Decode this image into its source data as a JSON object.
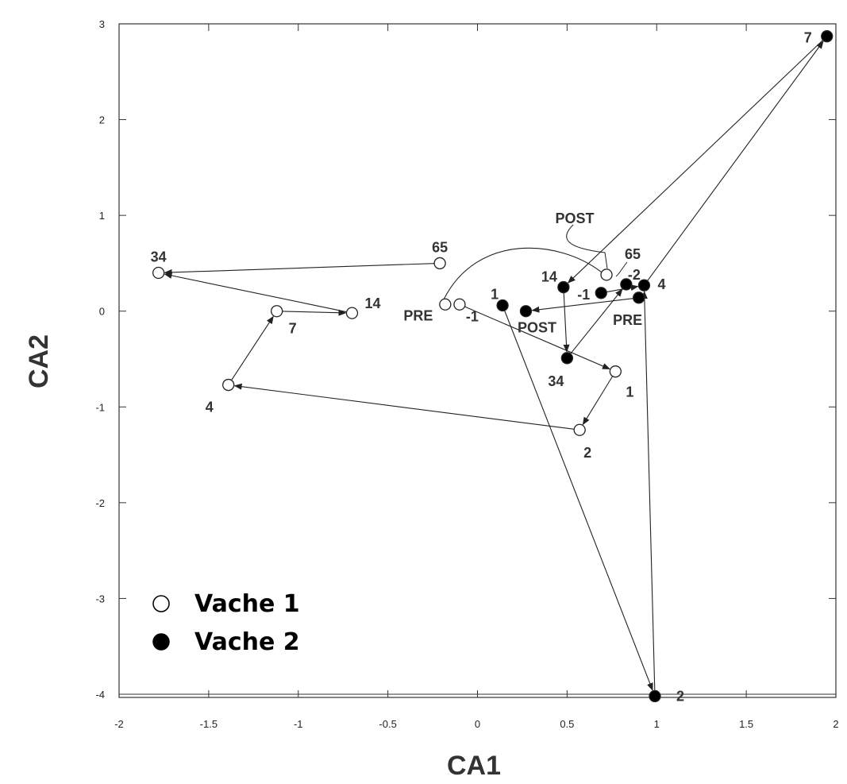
{
  "chart_data": {
    "type": "scatter",
    "xlabel": "CA1",
    "ylabel": "CA2",
    "xlim": [
      -2,
      2
    ],
    "ylim": [
      -4,
      3
    ],
    "x_ticks": [
      "-2",
      "-1.5",
      "-1",
      "-0.5",
      "0",
      "0.5",
      "1",
      "1.5",
      "2"
    ],
    "y_ticks": [
      "3",
      "2",
      "1",
      "0",
      "-1",
      "-2",
      "-3",
      "-4"
    ],
    "legend": {
      "position": "bottom-left"
    },
    "series": [
      {
        "name": "Vache 1",
        "marker": "open-circle",
        "color": "#ffffff",
        "points": [
          {
            "label": "PRE",
            "x": -0.18,
            "y": 0.07
          },
          {
            "label": "-1",
            "x": -0.1,
            "y": 0.07
          },
          {
            "label": "1",
            "x": 0.77,
            "y": -0.63
          },
          {
            "label": "2",
            "x": 0.57,
            "y": -1.24
          },
          {
            "label": "4",
            "x": -1.39,
            "y": -0.77
          },
          {
            "label": "7",
            "x": -1.12,
            "y": 0.0
          },
          {
            "label": "14",
            "x": -0.7,
            "y": -0.02
          },
          {
            "label": "34",
            "x": -1.78,
            "y": 0.4
          },
          {
            "label": "65",
            "x": -0.21,
            "y": 0.5
          },
          {
            "label": "POST",
            "x": 0.72,
            "y": 0.38
          }
        ]
      },
      {
        "name": "Vache 2",
        "marker": "filled-circle",
        "color": "#000000",
        "points": [
          {
            "label": "PRE",
            "x": 0.9,
            "y": 0.14
          },
          {
            "label": "-1",
            "x": 0.69,
            "y": 0.19
          },
          {
            "label": "-2",
            "x": 0.83,
            "y": 0.28
          },
          {
            "label": "1",
            "x": 0.14,
            "y": 0.06
          },
          {
            "label": "2",
            "x": 0.99,
            "y": -4.02
          },
          {
            "label": "4",
            "x": 0.93,
            "y": 0.27
          },
          {
            "label": "7",
            "x": 1.95,
            "y": 2.87
          },
          {
            "label": "14",
            "x": 0.48,
            "y": 0.25
          },
          {
            "label": "34",
            "x": 0.5,
            "y": -0.49
          },
          {
            "label": "POST",
            "x": 0.27,
            "y": 0.0
          }
        ]
      }
    ]
  }
}
